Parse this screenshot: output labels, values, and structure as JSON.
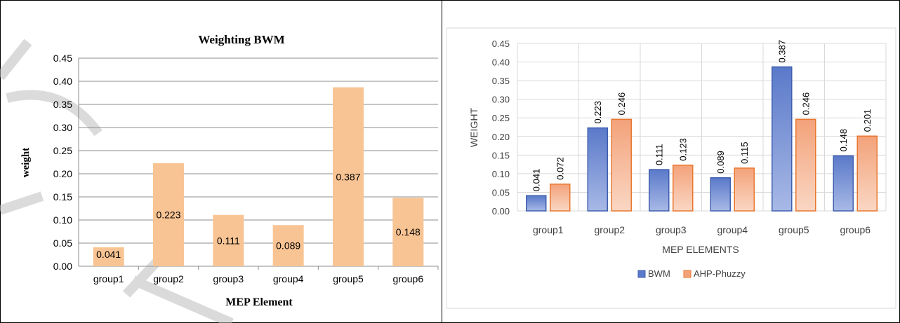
{
  "chart_data": [
    {
      "type": "bar",
      "title": "Weighting BWM",
      "xlabel": "MEP Element",
      "ylabel": "weight",
      "categories": [
        "group1",
        "group2",
        "group3",
        "group4",
        "group5",
        "group6"
      ],
      "values": [
        0.041,
        0.223,
        0.111,
        0.089,
        0.387,
        0.148
      ],
      "value_labels": [
        "0.041",
        "0.223",
        "0.111",
        "0.089",
        "0.387",
        "0.148"
      ],
      "yticks": [
        "0.00",
        "0.05",
        "0.10",
        "0.15",
        "0.20",
        "0.25",
        "0.30",
        "0.35",
        "0.40",
        "0.45"
      ],
      "ylim": [
        0,
        0.45
      ],
      "grid": true,
      "legend": "none",
      "colors": {
        "bar": "#F9C494"
      }
    },
    {
      "type": "bar",
      "title": "",
      "xlabel": "MEP ELEMENTS",
      "ylabel": "WEIGHT",
      "categories": [
        "group1",
        "group2",
        "group3",
        "group4",
        "group5",
        "group6"
      ],
      "series": [
        {
          "name": "BWM",
          "values": [
            0.041,
            0.223,
            0.111,
            0.089,
            0.387,
            0.148
          ],
          "labels": [
            "0.041",
            "0.223",
            "0.111",
            "0.089",
            "0.387",
            "0.148"
          ]
        },
        {
          "name": "AHP-Phuzzy",
          "values": [
            0.072,
            0.246,
            0.123,
            0.115,
            0.246,
            0.201
          ],
          "labels": [
            "0.072",
            "0.246",
            "0.123",
            "0.115",
            "0.246",
            "0.201"
          ]
        }
      ],
      "yticks": [
        "0.00",
        "0.05",
        "0.10",
        "0.15",
        "0.20",
        "0.25",
        "0.30",
        "0.35",
        "0.40",
        "0.45"
      ],
      "ylim": [
        0,
        0.45
      ],
      "grid": true,
      "legend": "bottom",
      "colors": {
        "bwm_top": "#5A79C9",
        "bwm_bottom": "#A8B9E6",
        "bwm_stroke": "#3F5FAF",
        "ahp_top": "#F3A27A",
        "ahp_bottom": "#FAD7C4",
        "ahp_stroke": "#E8772E"
      }
    }
  ]
}
